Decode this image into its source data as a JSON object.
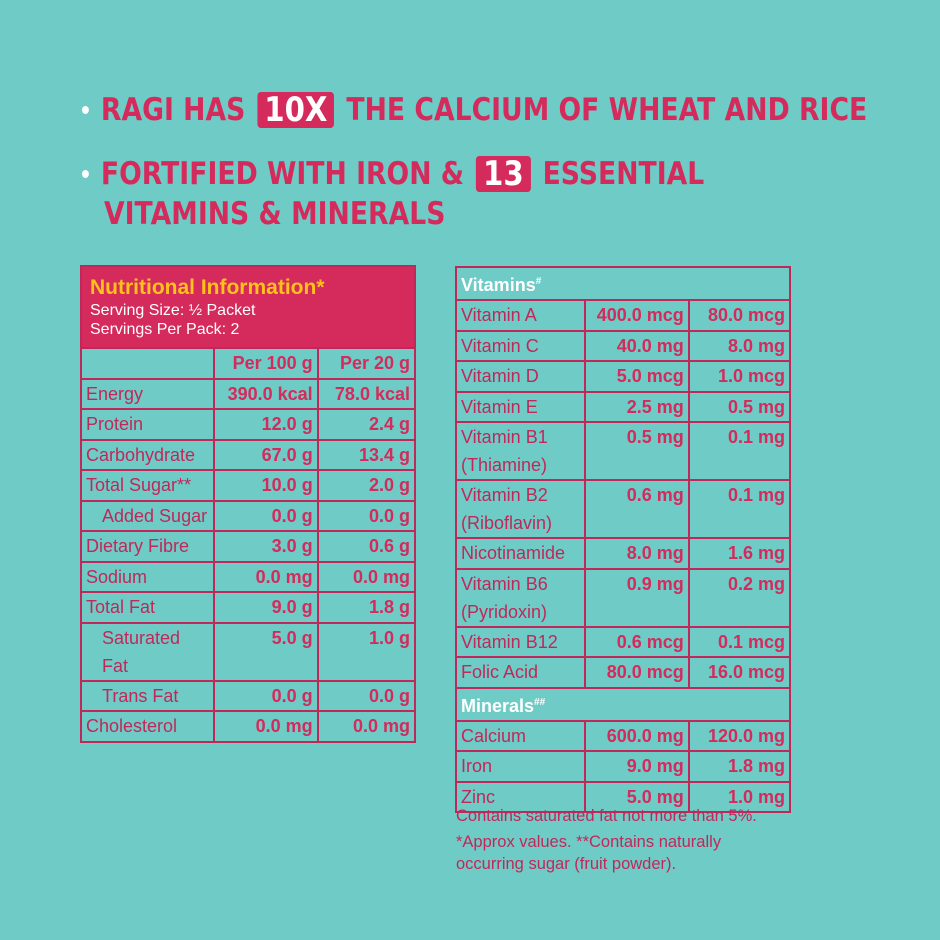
{
  "headline": {
    "line1": {
      "before": "RAGI HAS",
      "highlight": "10X",
      "after": "THE CALCIUM OF WHEAT AND RICE"
    },
    "line2": {
      "before": "FORTIFIED WITH IRON &",
      "highlight": "13",
      "after": "ESSENTIAL"
    },
    "line3": "VITAMINS & MINERALS"
  },
  "nutrition": {
    "title": "Nutritional Information*",
    "serving_size": "Serving Size: ½ Packet",
    "servings_per_pack": "Servings Per Pack: 2",
    "columns": [
      "",
      "Per 100 g",
      "Per 20 g"
    ],
    "rows": [
      [
        "Energy",
        "390.0 kcal",
        "78.0 kcal"
      ],
      [
        "Protein",
        "12.0 g",
        "2.4 g"
      ],
      [
        "Carbohydrate",
        "67.0 g",
        "13.4 g"
      ],
      [
        "Total Sugar**",
        "10.0 g",
        "2.0 g"
      ],
      [
        "Added Sugar",
        "0.0 g",
        "0.0 g"
      ],
      [
        "Dietary Fibre",
        "3.0 g",
        "0.6 g"
      ],
      [
        "Sodium",
        "0.0 mg",
        "0.0 mg"
      ],
      [
        "Total Fat",
        "9.0 g",
        "1.8 g"
      ],
      [
        "Saturated Fat",
        "5.0 g",
        "1.0 g"
      ],
      [
        "Trans Fat",
        "0.0 g",
        "0.0 g"
      ],
      [
        "Cholesterol",
        "0.0 mg",
        "0.0 mg"
      ]
    ]
  },
  "vitamins": {
    "title": "Vitamins",
    "mark": "#",
    "rows": [
      [
        "Vitamin A",
        "400.0 mcg",
        "80.0 mcg"
      ],
      [
        "Vitamin C",
        "40.0 mg",
        "8.0 mg"
      ],
      [
        "Vitamin D",
        "5.0 mcg",
        "1.0 mcg"
      ],
      [
        "Vitamin E",
        "2.5 mg",
        "0.5 mg"
      ],
      [
        "Vitamin B1",
        "0.5 mg",
        "0.1 mg",
        "(Thiamine)"
      ],
      [
        "Vitamin B2",
        "0.6 mg",
        "0.1 mg",
        "(Riboflavin)"
      ],
      [
        "Nicotinamide",
        "8.0 mg",
        "1.6 mg"
      ],
      [
        "Vitamin B6",
        "0.9 mg",
        "0.2 mg",
        "(Pyridoxin)"
      ],
      [
        "Vitamin B12",
        "0.6 mcg",
        "0.1 mcg"
      ],
      [
        "Folic Acid",
        "80.0 mcg",
        "16.0 mcg"
      ]
    ]
  },
  "minerals": {
    "title": "Minerals",
    "mark": "##",
    "rows": [
      [
        "Calcium",
        "600.0 mg",
        "120.0 mg"
      ],
      [
        "Iron",
        "9.0 mg",
        "1.8 mg"
      ],
      [
        "Zinc",
        "5.0 mg",
        "1.0 mg"
      ]
    ]
  },
  "notes": [
    "Contains saturated fat not more than 5%.",
    "*Approx values. **Contains naturally occurring sugar (fruit powder)."
  ],
  "colors": {
    "background": "#6fcbc6",
    "accent": "#d42a5c",
    "title": "#ffc21a"
  }
}
